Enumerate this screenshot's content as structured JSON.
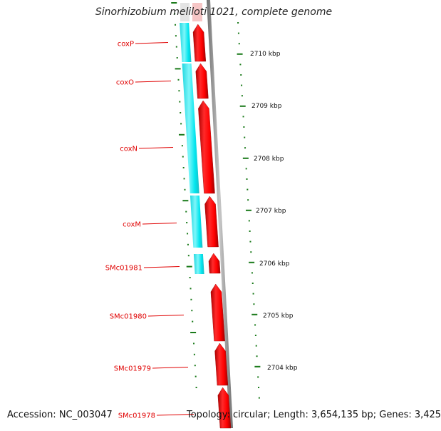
{
  "title": "Sinorhizobium meliloti 1021, complete genome",
  "footer": {
    "accession": "Accession: NC_003047",
    "summary": "Topology: circular; Length: 3,654,135 bp; Genes: 3,425"
  },
  "colors": {
    "gene_label": "#e00000",
    "forward_feature": "#ff0000",
    "reverse_feature": "#00e5ee",
    "tick": "#1a7a1a",
    "backbone": "#8a8a8a"
  },
  "genes": [
    {
      "name": "coxP"
    },
    {
      "name": "coxO"
    },
    {
      "name": "coxN"
    },
    {
      "name": "coxM"
    },
    {
      "name": "SMc01981"
    },
    {
      "name": "SMc01980"
    },
    {
      "name": "SMc01979"
    },
    {
      "name": "SMc01978"
    }
  ],
  "scale_labels": [
    {
      "label": "2710 kbp"
    },
    {
      "label": "2709 kbp"
    },
    {
      "label": "2708 kbp"
    },
    {
      "label": "2707 kbp"
    },
    {
      "label": "2706 kbp"
    },
    {
      "label": "2705 kbp"
    },
    {
      "label": "2704 kbp"
    }
  ]
}
